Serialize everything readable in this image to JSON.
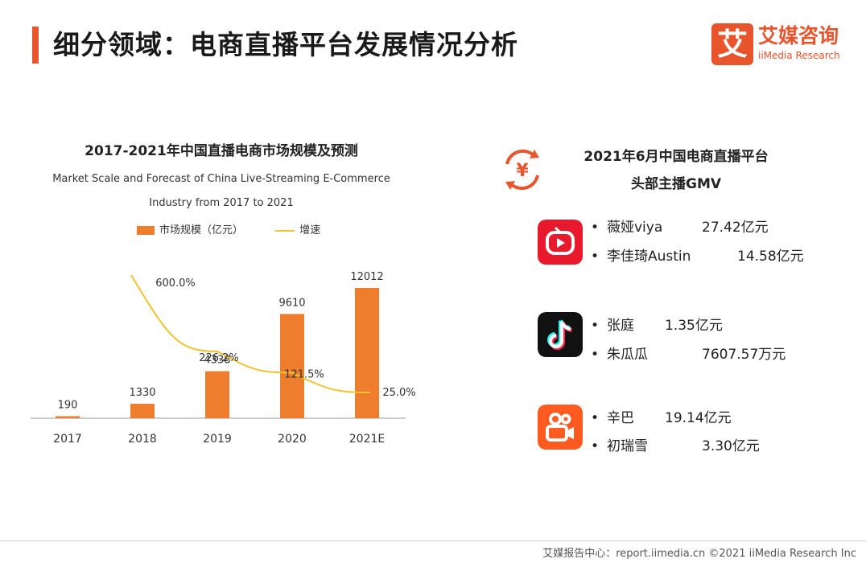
{
  "header": {
    "title": "细分领域：电商直播平台发展情况分析",
    "logo_mark": "艾",
    "logo_cn": "艾媒咨询",
    "logo_en": "iiMedia Research",
    "accent_color": "#e8542c"
  },
  "chart_data": {
    "type": "bar",
    "title": "2017-2021年中国直播电商市场规模及预测",
    "subtitle_line1": "Market Scale and Forecast of China Live-Streaming E-Commerce",
    "subtitle_line2": "Industry from 2017 to 2021",
    "categories": [
      "2017",
      "2018",
      "2019",
      "2020",
      "2021E"
    ],
    "series": [
      {
        "name": "市场规模（亿元）",
        "type": "bar",
        "color": "#ee7d2d",
        "values": [
          190,
          1330,
          4338,
          9610,
          12012
        ],
        "labels": [
          "190",
          "1330",
          "4338",
          "9610",
          "12012"
        ]
      },
      {
        "name": "增速",
        "type": "line",
        "color": "#f2c230",
        "values": [
          null,
          600.0,
          226.2,
          121.5,
          25.0
        ],
        "labels": [
          "",
          "600.0%",
          "226.2%",
          "121.5%",
          "25.0%"
        ]
      }
    ],
    "ylim": [
      0,
      12012
    ],
    "grid": false,
    "legend": "top"
  },
  "right_panel": {
    "title_line1": "2021年6月中国电商直播平台",
    "title_line2": "头部主播GMV",
    "icon": "yuan-cycle-icon",
    "bullet": "•",
    "platforms": [
      {
        "icon": "kuaishou-like-red-tv-icon",
        "color": "#e8192c",
        "anchors": [
          {
            "name": "薇娅viya",
            "gmv": "27.42亿元"
          },
          {
            "name": "李佳琦Austin",
            "gmv": "14.58亿元"
          }
        ]
      },
      {
        "icon": "douyin-note-icon",
        "color": "#111111",
        "anchors": [
          {
            "name": "张庭",
            "gmv": "1.35亿元"
          },
          {
            "name": "朱瓜瓜",
            "gmv": "7607.57万元"
          }
        ]
      },
      {
        "icon": "kuaishou-camera-icon",
        "color": "#ff5a1f",
        "anchors": [
          {
            "name": "辛巴",
            "gmv": "19.14亿元"
          },
          {
            "name": "初瑞雪",
            "gmv": "3.30亿元"
          }
        ]
      }
    ]
  },
  "footer": {
    "text": "艾媒报告中心：report.iimedia.cn ©2021 iiMedia Research Inc"
  }
}
